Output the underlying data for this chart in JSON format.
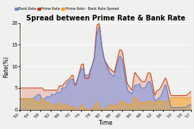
{
  "title": "Spread between Prime Rate & Bank Rate",
  "xlabel": "Time",
  "ylabel": "Rate(%)",
  "legend": [
    "Bank Rate",
    "Prime Rate",
    "Prime Rate - Bank Rate Spread"
  ],
  "legend_colors": [
    "#6688cc",
    "#cc3300",
    "#ff9900"
  ],
  "ylim": [
    0,
    20
  ],
  "yticks": [
    0,
    5,
    10,
    15,
    20
  ],
  "bg_color": "#f0f0ee",
  "plot_bg": "#f0f0ee",
  "tick_years": [
    1950,
    1954,
    1958,
    1962,
    1966,
    1970,
    1974,
    1978,
    1982,
    1986,
    1990,
    1994,
    1998,
    2002,
    2006,
    2010,
    2014,
    2017
  ],
  "tick_labels": [
    "'50",
    "'54",
    "'58",
    "'62",
    "'66",
    "'70",
    "'74",
    "'78",
    "'82",
    "'86",
    "'90",
    "'94",
    "'98",
    "'02",
    "'06",
    "'10",
    "'14",
    "'17"
  ]
}
